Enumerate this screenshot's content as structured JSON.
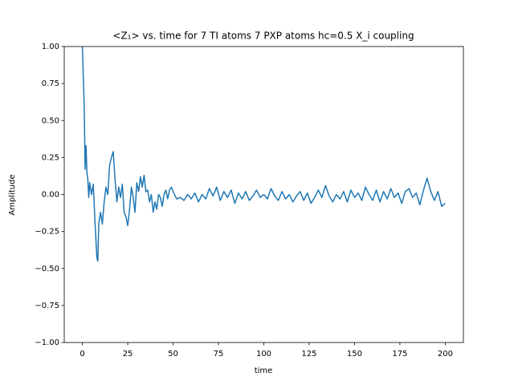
{
  "chart_data": {
    "type": "line",
    "title": "<Z₁>  vs. time for 7 TI atoms 7 PXP atoms hc=0.5 X_i coupling",
    "x_label": "time",
    "y_label": "Amplitude",
    "xlim": [
      -10,
      210
    ],
    "ylim": [
      -1,
      1
    ],
    "xticks": [
      0,
      25,
      50,
      75,
      100,
      125,
      150,
      175,
      200
    ],
    "yticks": [
      {
        "value": -1,
        "label": "−1.00"
      },
      {
        "value": -0.75,
        "label": "−0.75"
      },
      {
        "value": -0.5,
        "label": "−0.50"
      },
      {
        "value": -0.25,
        "label": "−0.25"
      },
      {
        "value": 0,
        "label": "0.00"
      },
      {
        "value": 0.25,
        "label": "0.25"
      },
      {
        "value": 0.5,
        "label": "0.50"
      },
      {
        "value": 0.75,
        "label": "0.75"
      },
      {
        "value": 1,
        "label": "1.00"
      }
    ],
    "grid": false,
    "x": [
      0,
      1,
      1.5,
      2,
      2.5,
      3,
      3.5,
      4,
      5,
      6,
      7,
      8,
      8.5,
      9,
      10,
      11,
      12,
      13,
      14,
      15,
      16,
      17,
      18,
      19,
      20,
      21,
      22,
      23,
      24,
      25,
      26,
      27,
      28,
      29,
      30,
      31,
      32,
      33,
      34,
      35,
      36,
      37,
      38,
      39,
      40,
      41,
      42,
      43,
      44,
      45,
      46,
      47,
      48,
      49,
      50,
      52,
      54,
      56,
      58,
      60,
      62,
      64,
      66,
      68,
      70,
      72,
      74,
      76,
      78,
      80,
      82,
      84,
      86,
      88,
      90,
      92,
      94,
      96,
      98,
      100,
      102,
      104,
      106,
      108,
      110,
      112,
      114,
      116,
      118,
      120,
      122,
      124,
      126,
      128,
      130,
      132,
      134,
      136,
      138,
      140,
      142,
      144,
      146,
      148,
      150,
      152,
      154,
      156,
      158,
      160,
      162,
      164,
      166,
      168,
      170,
      172,
      174,
      176,
      178,
      180,
      182,
      184,
      186,
      188,
      190,
      192,
      194,
      196,
      198,
      200
    ],
    "series": [
      {
        "name": "Z1",
        "color": "#1f77b4",
        "values": [
          1.0,
          0.6,
          0.17,
          0.33,
          0.15,
          0.1,
          -0.02,
          0.08,
          0.0,
          0.07,
          -0.2,
          -0.43,
          -0.45,
          -0.2,
          -0.12,
          -0.2,
          -0.05,
          0.05,
          0.0,
          0.2,
          0.25,
          0.29,
          0.1,
          -0.05,
          0.05,
          -0.02,
          0.07,
          -0.12,
          -0.15,
          -0.21,
          -0.1,
          0.05,
          -0.02,
          -0.12,
          0.08,
          0.02,
          0.12,
          0.05,
          0.13,
          0.02,
          0.03,
          -0.05,
          0.0,
          -0.12,
          -0.05,
          -0.1,
          0.0,
          -0.02,
          -0.08,
          0.0,
          0.03,
          -0.03,
          0.03,
          0.05,
          0.02,
          -0.03,
          -0.02,
          -0.04,
          0.0,
          -0.03,
          0.01,
          -0.05,
          0.0,
          -0.03,
          0.04,
          -0.01,
          0.05,
          -0.04,
          0.02,
          -0.02,
          0.03,
          -0.06,
          0.01,
          -0.03,
          0.02,
          -0.04,
          -0.01,
          0.03,
          -0.02,
          0.0,
          -0.03,
          0.04,
          -0.01,
          -0.04,
          0.02,
          -0.03,
          0.0,
          -0.05,
          -0.01,
          0.02,
          -0.04,
          0.01,
          -0.06,
          -0.02,
          0.03,
          -0.02,
          0.06,
          -0.01,
          -0.05,
          0.0,
          -0.03,
          0.02,
          -0.05,
          0.03,
          -0.02,
          0.01,
          -0.04,
          0.05,
          0.0,
          -0.04,
          0.03,
          -0.05,
          0.02,
          -0.03,
          0.04,
          -0.02,
          0.01,
          -0.06,
          0.02,
          0.04,
          -0.02,
          0.01,
          -0.07,
          0.03,
          0.11,
          0.02,
          -0.04,
          0.02,
          -0.08,
          -0.06
        ]
      }
    ]
  }
}
